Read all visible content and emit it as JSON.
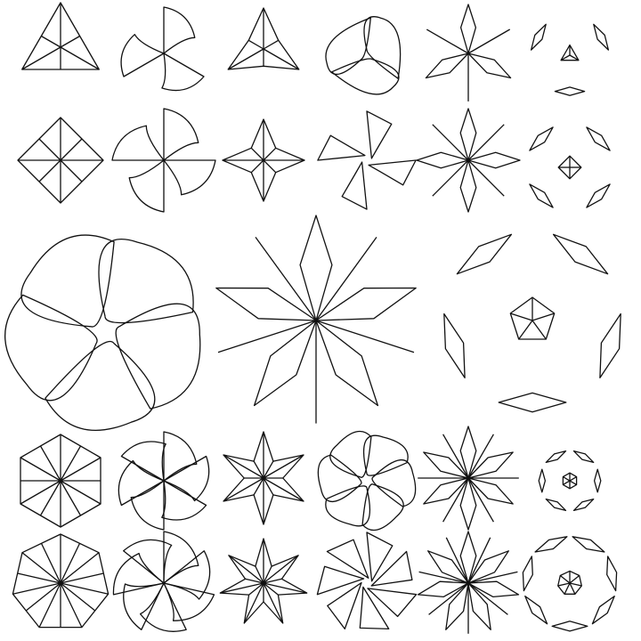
{
  "page": {
    "background": "#ffffff",
    "stroke_color": "#111111"
  },
  "figures": [
    {
      "id": "tri-kite-fan",
      "kind": "polygon-fan",
      "folds": 3
    },
    {
      "id": "tri-pinwheel",
      "kind": "curved-pinwheel",
      "folds": 3
    },
    {
      "id": "tri-star",
      "kind": "star",
      "folds": 3
    },
    {
      "id": "tri-overlap-curves",
      "kind": "overlapping-curves",
      "folds": 3
    },
    {
      "id": "tri-rhombus-star",
      "kind": "rhombus-burst",
      "folds": 3
    },
    {
      "id": "tri-scattered-shapes",
      "kind": "scattered-quads",
      "folds": 3
    },
    {
      "id": "quad-kite-fan",
      "kind": "polygon-fan",
      "folds": 4
    },
    {
      "id": "quad-pinwheel",
      "kind": "curved-pinwheel",
      "folds": 4
    },
    {
      "id": "quad-star",
      "kind": "star",
      "folds": 4
    },
    {
      "id": "quad-overlap-blades",
      "kind": "overlapping-blades",
      "folds": 4
    },
    {
      "id": "quad-rhombus-star",
      "kind": "rhombus-burst",
      "folds": 4
    },
    {
      "id": "quad-scattered-shapes",
      "kind": "scattered-quads",
      "folds": 4
    },
    {
      "id": "penta-overlap-curves-large",
      "kind": "overlapping-curves",
      "folds": 5
    },
    {
      "id": "penta-rhombus-star-large",
      "kind": "rhombus-burst",
      "folds": 5
    },
    {
      "id": "penta-scattered-shapes-large",
      "kind": "scattered-quads",
      "folds": 5
    },
    {
      "id": "hex-kite-fan",
      "kind": "polygon-fan",
      "folds": 6
    },
    {
      "id": "hex-pinwheel",
      "kind": "curved-pinwheel",
      "folds": 6
    },
    {
      "id": "hex-star",
      "kind": "star",
      "folds": 6
    },
    {
      "id": "hex-overlap-curves",
      "kind": "overlapping-curves",
      "folds": 6
    },
    {
      "id": "hex-rhombus-star",
      "kind": "rhombus-burst",
      "folds": 6
    },
    {
      "id": "hex-scattered-shapes",
      "kind": "scattered-quads",
      "folds": 6
    },
    {
      "id": "hepta-kite-fan",
      "kind": "polygon-fan",
      "folds": 7
    },
    {
      "id": "hepta-pinwheel",
      "kind": "curved-pinwheel",
      "folds": 7
    },
    {
      "id": "hepta-star",
      "kind": "star",
      "folds": 7
    },
    {
      "id": "hepta-overlap-blades",
      "kind": "overlapping-blades",
      "folds": 7
    },
    {
      "id": "hepta-rhombus-star",
      "kind": "rhombus-burst",
      "folds": 7
    },
    {
      "id": "hepta-scattered-shapes",
      "kind": "scattered-quads",
      "folds": 7
    }
  ]
}
